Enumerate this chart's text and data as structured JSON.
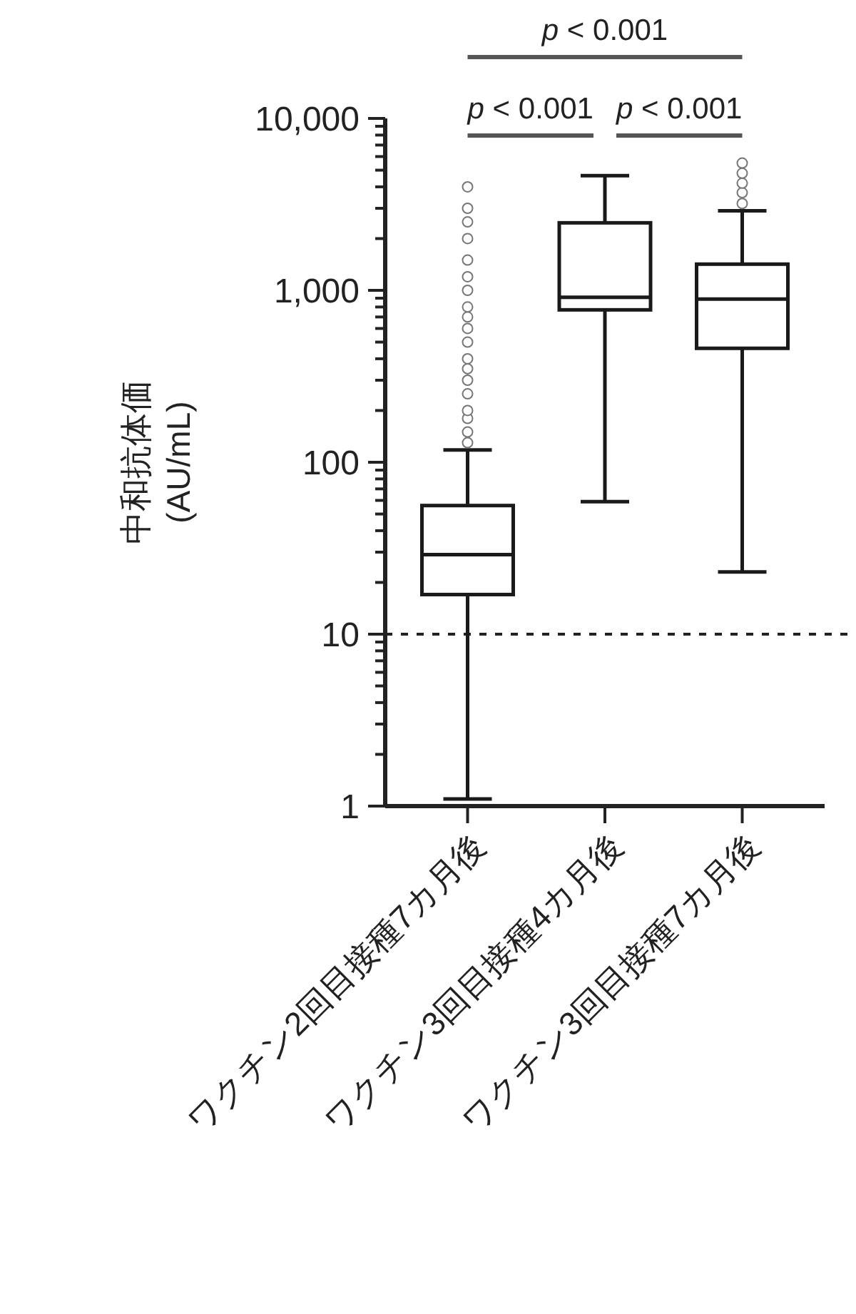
{
  "chart_data": {
    "type": "box",
    "ylabel": "中和抗体価\n(AU/mL)",
    "categories": [
      "ワクチン2回目接種7カ月後",
      "ワクチン3回目接種4カ月後",
      "ワクチン3回目接種7カ月後"
    ],
    "boxes": [
      {
        "low": 1.1,
        "q1": 17,
        "median": 29,
        "q3": 56,
        "high": 118,
        "outliers": [
          130,
          150,
          180,
          200,
          250,
          300,
          350,
          400,
          500,
          600,
          700,
          800,
          1000,
          1200,
          1500,
          2000,
          2500,
          3000,
          4000
        ]
      },
      {
        "low": 59,
        "q1": 770,
        "median": 910,
        "q3": 2470,
        "high": 4650
      },
      {
        "low": 23,
        "q1": 460,
        "median": 890,
        "q3": 1420,
        "high": 2900,
        "outliers": [
          3200,
          3700,
          4200,
          4800,
          5500
        ]
      }
    ],
    "color": "#1a1a1a",
    "log": true,
    "ylim": [
      1,
      10000
    ],
    "yticks": [
      {
        "value": 1,
        "label": "1"
      },
      {
        "value": 2,
        "label": null
      },
      {
        "value": 3,
        "label": null
      },
      {
        "value": 4,
        "label": null
      },
      {
        "value": 5,
        "label": null
      },
      {
        "value": 6,
        "label": null
      },
      {
        "value": 7,
        "label": null
      },
      {
        "value": 8,
        "label": null
      },
      {
        "value": 9,
        "label": null
      },
      {
        "value": 10,
        "label": "10"
      },
      {
        "value": 20,
        "label": null
      },
      {
        "value": 30,
        "label": null
      },
      {
        "value": 40,
        "label": null
      },
      {
        "value": 50,
        "label": null
      },
      {
        "value": 60,
        "label": null
      },
      {
        "value": 70,
        "label": null
      },
      {
        "value": 80,
        "label": null
      },
      {
        "value": 90,
        "label": null
      },
      {
        "value": 100,
        "label": "100"
      },
      {
        "value": 200,
        "label": null
      },
      {
        "value": 300,
        "label": null
      },
      {
        "value": 400,
        "label": null
      },
      {
        "value": 500,
        "label": null
      },
      {
        "value": 600,
        "label": null
      },
      {
        "value": 700,
        "label": null
      },
      {
        "value": 800,
        "label": null
      },
      {
        "value": 900,
        "label": null
      },
      {
        "value": 1000,
        "label": "1,000"
      },
      {
        "value": 2000,
        "label": null
      },
      {
        "value": 3000,
        "label": null
      },
      {
        "value": 4000,
        "label": null
      },
      {
        "value": 5000,
        "label": null
      },
      {
        "value": 6000,
        "label": null
      },
      {
        "value": 7000,
        "label": null
      },
      {
        "value": 8000,
        "label": null
      },
      {
        "value": 9000,
        "label": null
      },
      {
        "value": 10000,
        "label": "10,000"
      }
    ],
    "grid": false,
    "ref_lines": [
      {
        "axis": "y",
        "value": 10,
        "line_style": "dashed"
      }
    ],
    "annotations": [
      "p < 0.001",
      "p < 0.001",
      "p < 0.001"
    ]
  }
}
